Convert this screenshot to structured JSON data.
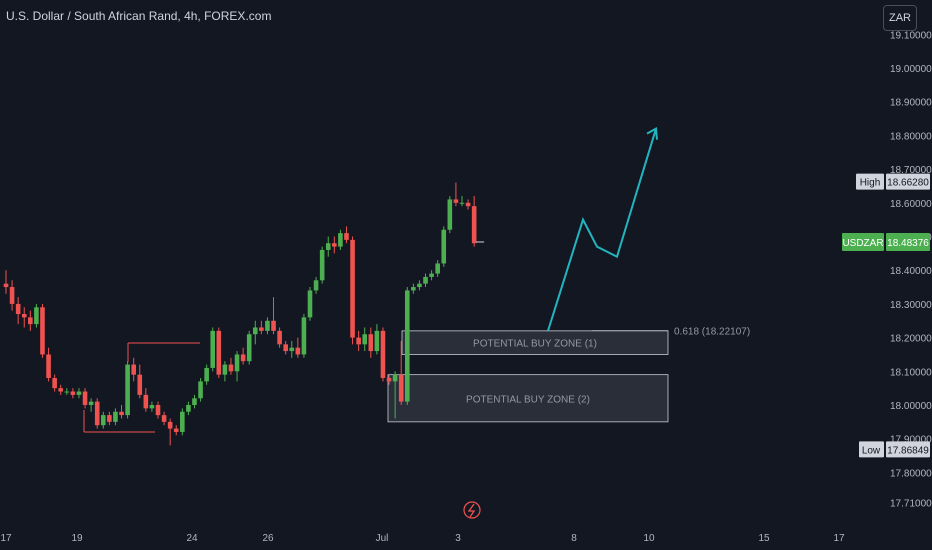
{
  "header": {
    "title": "U.S. Dollar / South African Rand, 4h, FOREX.com",
    "currency_button": "ZAR"
  },
  "markers": {
    "high_label": "High",
    "high_value": "18.66280",
    "low_label": "Low",
    "low_value": "17.86849",
    "symbol_label": "USDZAR",
    "symbol_value": "18.48376",
    "fib_label": "0.618 (18.22107)"
  },
  "zones": {
    "zone1_label": "POTENTIAL BUY ZONE (1)",
    "zone2_label": "POTENTIAL BUY ZONE (2)"
  },
  "colors": {
    "background": "#131722",
    "up": "#26a69a",
    "up_body": "#4caf50",
    "down": "#ef5350",
    "projection": "#22b5c0",
    "zone_fill": "#2a2e39"
  },
  "chart_data": {
    "type": "candlestick",
    "title": "U.S. Dollar / South African Rand, 4h, FOREX.com",
    "y_ticks": [
      "19.10000",
      "19.00000",
      "18.90000",
      "18.80000",
      "18.70000",
      "18.60000",
      "18.50000",
      "18.40000",
      "18.30000",
      "18.20000",
      "18.10000",
      "18.00000",
      "17.90000",
      "17.80000",
      "17.71000"
    ],
    "x_ticks": [
      "17",
      "19",
      "24",
      "26",
      "Jul",
      "3",
      "8",
      "10",
      "15",
      "17"
    ],
    "ylim": [
      17.69,
      19.12
    ],
    "candles": [
      {
        "o": 18.36,
        "h": 18.4,
        "l": 18.33,
        "c": 18.35
      },
      {
        "o": 18.35,
        "h": 18.37,
        "l": 18.28,
        "c": 18.3
      },
      {
        "o": 18.3,
        "h": 18.32,
        "l": 18.24,
        "c": 18.27
      },
      {
        "o": 18.27,
        "h": 18.29,
        "l": 18.23,
        "c": 18.26
      },
      {
        "o": 18.26,
        "h": 18.28,
        "l": 18.22,
        "c": 18.24
      },
      {
        "o": 18.24,
        "h": 18.3,
        "l": 18.23,
        "c": 18.29
      },
      {
        "o": 18.29,
        "h": 18.3,
        "l": 18.14,
        "c": 18.15
      },
      {
        "o": 18.15,
        "h": 18.17,
        "l": 18.07,
        "c": 18.08
      },
      {
        "o": 18.08,
        "h": 18.09,
        "l": 18.04,
        "c": 18.05
      },
      {
        "o": 18.05,
        "h": 18.06,
        "l": 18.03,
        "c": 18.04
      },
      {
        "o": 18.04,
        "h": 18.05,
        "l": 18.03,
        "c": 18.04
      },
      {
        "o": 18.04,
        "h": 18.05,
        "l": 18.02,
        "c": 18.03
      },
      {
        "o": 18.03,
        "h": 18.05,
        "l": 18.02,
        "c": 18.04
      },
      {
        "o": 18.04,
        "h": 18.05,
        "l": 17.99,
        "c": 18.0
      },
      {
        "o": 18.0,
        "h": 18.02,
        "l": 17.98,
        "c": 18.01
      },
      {
        "o": 18.01,
        "h": 18.02,
        "l": 17.93,
        "c": 17.94
      },
      {
        "o": 17.94,
        "h": 17.98,
        "l": 17.93,
        "c": 17.97
      },
      {
        "o": 17.97,
        "h": 17.98,
        "l": 17.94,
        "c": 17.95
      },
      {
        "o": 17.95,
        "h": 17.99,
        "l": 17.94,
        "c": 17.98
      },
      {
        "o": 17.98,
        "h": 18.0,
        "l": 17.96,
        "c": 17.97
      },
      {
        "o": 17.97,
        "h": 18.13,
        "l": 17.96,
        "c": 18.12
      },
      {
        "o": 18.12,
        "h": 18.14,
        "l": 18.07,
        "c": 18.09
      },
      {
        "o": 18.09,
        "h": 18.12,
        "l": 18.02,
        "c": 18.03
      },
      {
        "o": 18.03,
        "h": 18.05,
        "l": 17.98,
        "c": 17.99
      },
      {
        "o": 17.99,
        "h": 18.01,
        "l": 17.98,
        "c": 18.0
      },
      {
        "o": 18.0,
        "h": 18.01,
        "l": 17.96,
        "c": 17.97
      },
      {
        "o": 17.97,
        "h": 17.98,
        "l": 17.94,
        "c": 17.95
      },
      {
        "o": 17.95,
        "h": 17.96,
        "l": 17.88,
        "c": 17.93
      },
      {
        "o": 17.93,
        "h": 17.94,
        "l": 17.91,
        "c": 17.92
      },
      {
        "o": 17.92,
        "h": 17.99,
        "l": 17.91,
        "c": 17.98
      },
      {
        "o": 17.98,
        "h": 18.01,
        "l": 17.97,
        "c": 18.0
      },
      {
        "o": 18.0,
        "h": 18.03,
        "l": 17.99,
        "c": 18.02
      },
      {
        "o": 18.02,
        "h": 18.08,
        "l": 18.01,
        "c": 18.07
      },
      {
        "o": 18.07,
        "h": 18.12,
        "l": 18.06,
        "c": 18.11
      },
      {
        "o": 18.11,
        "h": 18.23,
        "l": 18.1,
        "c": 18.22
      },
      {
        "o": 18.22,
        "h": 18.23,
        "l": 18.08,
        "c": 18.09
      },
      {
        "o": 18.09,
        "h": 18.13,
        "l": 18.07,
        "c": 18.12
      },
      {
        "o": 18.12,
        "h": 18.14,
        "l": 18.09,
        "c": 18.1
      },
      {
        "o": 18.1,
        "h": 18.16,
        "l": 18.07,
        "c": 18.15
      },
      {
        "o": 18.15,
        "h": 18.17,
        "l": 18.12,
        "c": 18.13
      },
      {
        "o": 18.13,
        "h": 18.22,
        "l": 18.12,
        "c": 18.21
      },
      {
        "o": 18.21,
        "h": 18.25,
        "l": 18.18,
        "c": 18.23
      },
      {
        "o": 18.23,
        "h": 18.25,
        "l": 18.21,
        "c": 18.22
      },
      {
        "o": 18.22,
        "h": 18.26,
        "l": 18.21,
        "c": 18.25
      },
      {
        "o": 18.25,
        "h": 18.32,
        "l": 18.21,
        "c": 18.22
      },
      {
        "o": 18.22,
        "h": 18.23,
        "l": 18.17,
        "c": 18.18
      },
      {
        "o": 18.18,
        "h": 18.19,
        "l": 18.15,
        "c": 18.16
      },
      {
        "o": 18.16,
        "h": 18.19,
        "l": 18.14,
        "c": 18.17
      },
      {
        "o": 18.17,
        "h": 18.2,
        "l": 18.14,
        "c": 18.15
      },
      {
        "o": 18.15,
        "h": 18.27,
        "l": 18.14,
        "c": 18.26
      },
      {
        "o": 18.26,
        "h": 18.35,
        "l": 18.25,
        "c": 18.34
      },
      {
        "o": 18.34,
        "h": 18.38,
        "l": 18.33,
        "c": 18.37
      },
      {
        "o": 18.37,
        "h": 18.47,
        "l": 18.36,
        "c": 18.46
      },
      {
        "o": 18.46,
        "h": 18.5,
        "l": 18.44,
        "c": 18.48
      },
      {
        "o": 18.48,
        "h": 18.5,
        "l": 18.45,
        "c": 18.47
      },
      {
        "o": 18.47,
        "h": 18.52,
        "l": 18.46,
        "c": 18.51
      },
      {
        "o": 18.51,
        "h": 18.53,
        "l": 18.48,
        "c": 18.49
      },
      {
        "o": 18.49,
        "h": 18.5,
        "l": 18.18,
        "c": 18.2
      },
      {
        "o": 18.2,
        "h": 18.22,
        "l": 18.16,
        "c": 18.18
      },
      {
        "o": 18.18,
        "h": 18.23,
        "l": 18.16,
        "c": 18.21
      },
      {
        "o": 18.21,
        "h": 18.23,
        "l": 18.14,
        "c": 18.16
      },
      {
        "o": 18.16,
        "h": 18.24,
        "l": 18.15,
        "c": 18.22
      },
      {
        "o": 18.22,
        "h": 18.23,
        "l": 18.07,
        "c": 18.08
      },
      {
        "o": 18.08,
        "h": 18.09,
        "l": 18.06,
        "c": 18.07
      },
      {
        "o": 18.07,
        "h": 18.1,
        "l": 17.96,
        "c": 18.09
      },
      {
        "o": 18.09,
        "h": 18.19,
        "l": 18.0,
        "c": 18.01
      },
      {
        "o": 18.01,
        "h": 18.35,
        "l": 18.0,
        "c": 18.34
      },
      {
        "o": 18.34,
        "h": 18.36,
        "l": 18.33,
        "c": 18.35
      },
      {
        "o": 18.35,
        "h": 18.37,
        "l": 18.34,
        "c": 18.36
      },
      {
        "o": 18.36,
        "h": 18.39,
        "l": 18.35,
        "c": 18.38
      },
      {
        "o": 18.38,
        "h": 18.4,
        "l": 18.37,
        "c": 18.39
      },
      {
        "o": 18.39,
        "h": 18.43,
        "l": 18.38,
        "c": 18.42
      },
      {
        "o": 18.42,
        "h": 18.53,
        "l": 18.41,
        "c": 18.52
      },
      {
        "o": 18.52,
        "h": 18.62,
        "l": 18.51,
        "c": 18.61
      },
      {
        "o": 18.61,
        "h": 18.66,
        "l": 18.59,
        "c": 18.6
      },
      {
        "o": 18.6,
        "h": 18.62,
        "l": 18.59,
        "c": 18.6
      },
      {
        "o": 18.6,
        "h": 18.61,
        "l": 18.58,
        "c": 18.59
      },
      {
        "o": 18.59,
        "h": 18.62,
        "l": 18.47,
        "c": 18.48
      }
    ],
    "projection_path": [
      [
        18.22107,
        18.22
      ],
      [
        18.55,
        18.55
      ],
      [
        18.47,
        18.47
      ],
      [
        18.44,
        18.44
      ],
      [
        18.82,
        18.82
      ]
    ],
    "current_price": 18.48376,
    "high": 18.6628,
    "low": 17.86849,
    "fib_level": 18.22107,
    "buy_zone_1": [
      18.15,
      18.22
    ],
    "buy_zone_2": [
      17.95,
      18.09
    ]
  }
}
